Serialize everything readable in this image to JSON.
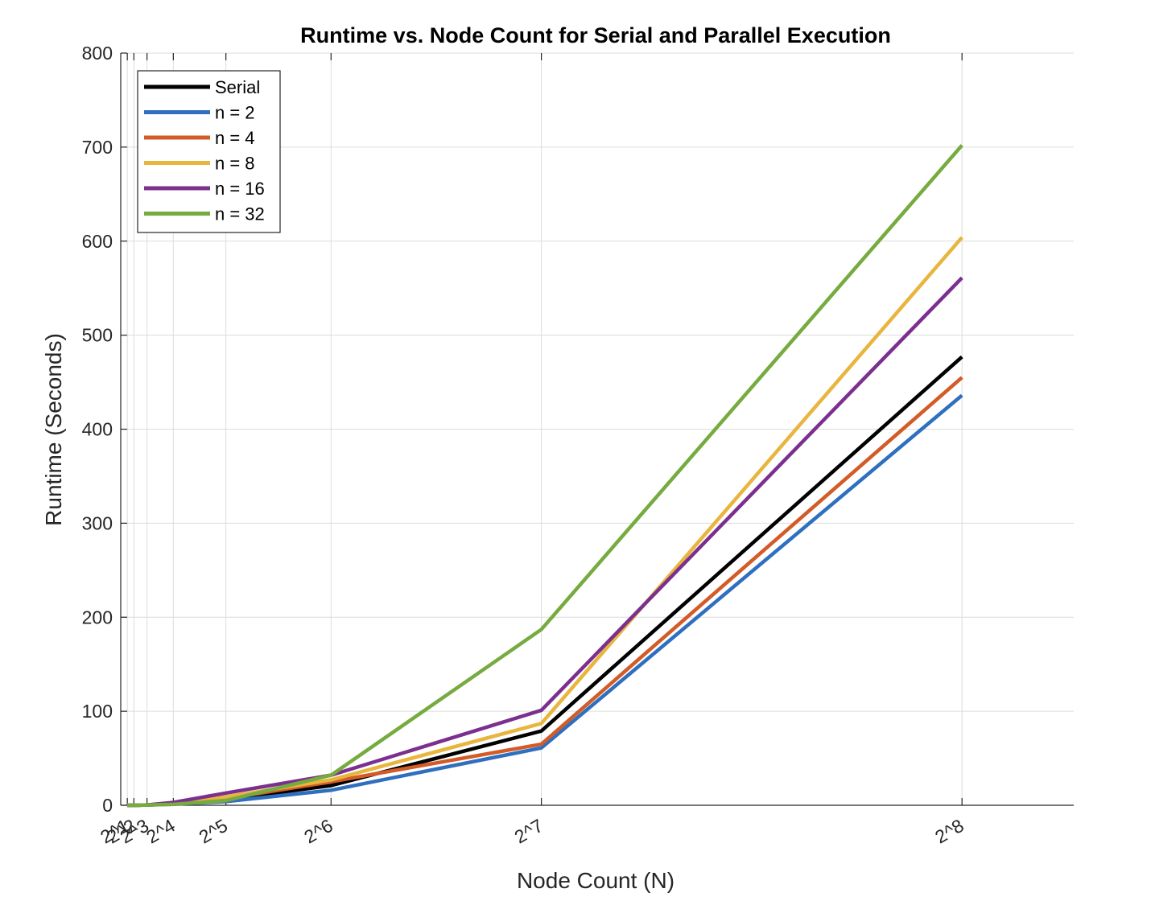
{
  "chart_data": {
    "type": "line",
    "title": "Runtime vs. Node Count for Serial and Parallel Execution",
    "xlabel": "Node Count (N)",
    "ylabel": "Runtime (Seconds)",
    "x": [
      2,
      4,
      8,
      16,
      32,
      64,
      128,
      256
    ],
    "x_tick_labels": [
      "2^1",
      "2^2",
      "2^3",
      "2^4",
      "2^5",
      "2^6",
      "2^7",
      "2^8"
    ],
    "xlim": [
      0,
      290
    ],
    "ylim": [
      0,
      800
    ],
    "y_ticks": [
      0,
      100,
      200,
      300,
      400,
      500,
      600,
      700,
      800
    ],
    "grid": true,
    "legend_position": "top-left",
    "series": [
      {
        "name": "Serial",
        "color": "#000000",
        "values": [
          0.01,
          0.05,
          0.3,
          1.5,
          6,
          21,
          79,
          477
        ]
      },
      {
        "name": "n = 2",
        "color": "#2f6fbf",
        "values": [
          0.01,
          0.05,
          0.3,
          1.2,
          4,
          16,
          61,
          436
        ]
      },
      {
        "name": "n = 4",
        "color": "#d35b27",
        "values": [
          0.01,
          0.05,
          0.3,
          1.5,
          7,
          25,
          65,
          455
        ]
      },
      {
        "name": "n = 8",
        "color": "#e8b53e",
        "values": [
          0.01,
          0.05,
          0.3,
          2,
          9,
          27,
          87,
          604
        ]
      },
      {
        "name": "n = 16",
        "color": "#7b2f8f",
        "values": [
          0.01,
          0.05,
          0.3,
          3,
          13,
          32,
          101,
          561
        ]
      },
      {
        "name": "n = 32",
        "color": "#76ab3f",
        "values": [
          0.01,
          0.05,
          0.3,
          1,
          5,
          32,
          187,
          702
        ]
      }
    ]
  }
}
